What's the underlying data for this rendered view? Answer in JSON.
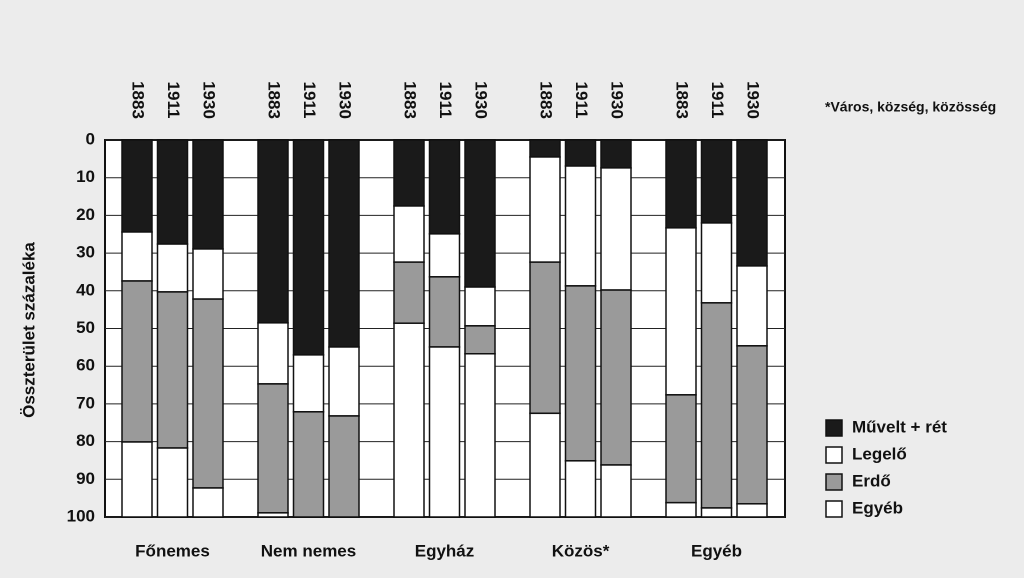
{
  "chart_data": {
    "type": "stacked_bar",
    "y_inverted": true,
    "y_label": "Összterület százaléka",
    "note": "*Város, község, közösség",
    "groups": [
      "Főnemes",
      "Nem nemes",
      "Egyház",
      "Közös*",
      "Egyéb"
    ],
    "categories": [
      "1883",
      "1911",
      "1930",
      "1883",
      "1911",
      "1930",
      "1883",
      "1911",
      "1930",
      "1883",
      "1911",
      "1930",
      "1883",
      "1911",
      "1930"
    ],
    "series": [
      {
        "name": "Művelt + rét",
        "color": "#1a1a1a",
        "values": [
          24.4,
          27.6,
          28.9,
          48.5,
          57,
          54.9,
          17.5,
          24.9,
          39,
          4.5,
          6.9,
          7.4,
          23.3,
          22,
          33.4
        ]
      },
      {
        "name": "Legelő",
        "color": "#ffffff",
        "values": [
          13,
          12.7,
          13.3,
          16.2,
          15.1,
          18.3,
          14.9,
          11.4,
          10.3,
          27.9,
          31.8,
          32.4,
          44.3,
          21.2,
          21.2
        ]
      },
      {
        "name": "Erdő",
        "color": "#9a9a9a",
        "values": [
          42.7,
          41.4,
          50.1,
          34.2,
          27.9,
          26.8,
          16.2,
          18.6,
          7.4,
          40.1,
          46.4,
          46.4,
          28.6,
          54.4,
          41.9
        ]
      },
      {
        "name": "Egyéb",
        "color": "#ffffff",
        "values": [
          19.9,
          18.3,
          7.7,
          1.1,
          0,
          0,
          51.4,
          45.1,
          43.3,
          27.5,
          14.9,
          13.8,
          3.8,
          2.4,
          3.5
        ]
      }
    ],
    "ylim": [
      0,
      100
    ],
    "yticks": [
      0,
      10,
      20,
      30,
      40,
      50,
      60,
      70,
      80,
      90,
      100
    ],
    "grid": true
  }
}
